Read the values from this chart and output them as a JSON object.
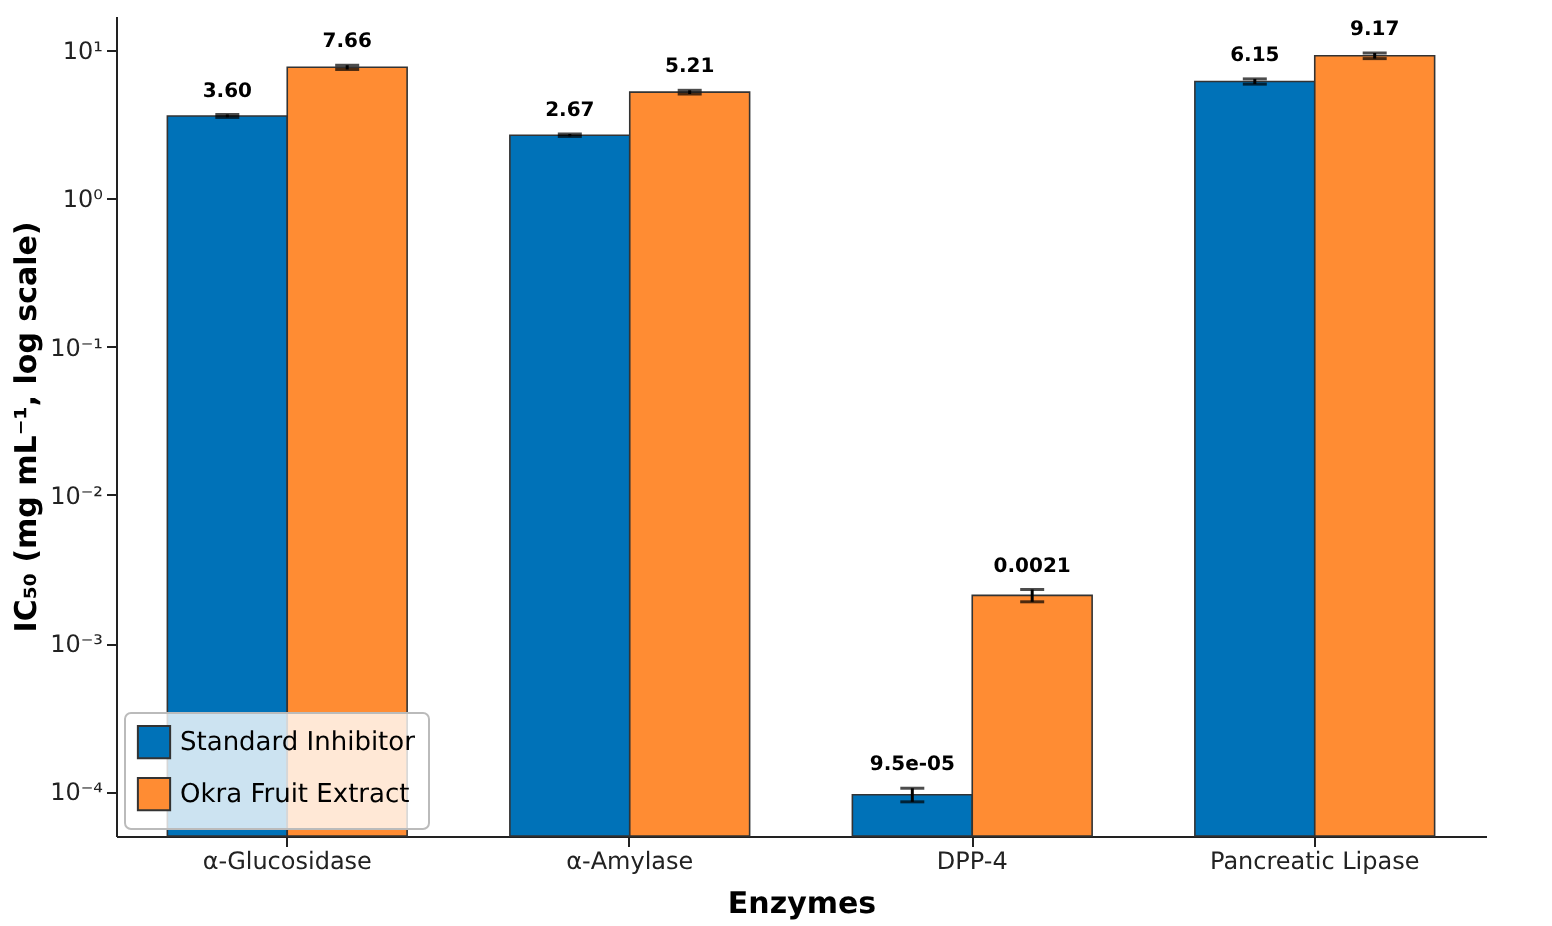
{
  "chart_data": {
    "type": "bar",
    "xlabel": "Enzymes",
    "ylabel": "IC₅₀ (mg mL⁻¹, log scale)",
    "categories": [
      "α-Glucosidase",
      "α-Amylase",
      "DPP-4",
      "Pancreatic Lipase"
    ],
    "series": [
      {
        "name": "Standard Inhibitor",
        "color": "#0072b8",
        "values": [
          3.6,
          2.67,
          9.5e-05,
          6.15
        ],
        "errors": [
          0.08,
          0.05,
          1e-05,
          0.25
        ],
        "value_labels": [
          "3.60",
          "2.67",
          "9.5e-05",
          "6.15"
        ]
      },
      {
        "name": "Okra Fruit Extract",
        "color": "#ff8c33",
        "values": [
          7.66,
          5.21,
          0.0021,
          9.17
        ],
        "errors": [
          0.25,
          0.15,
          0.0002,
          0.4
        ],
        "value_labels": [
          "7.66",
          "5.21",
          "0.0021",
          "9.17"
        ]
      }
    ],
    "log": true,
    "ylim": [
      5e-05,
      17
    ],
    "yticks": [
      {
        "value": 0.0001,
        "label": "10⁻⁴"
      },
      {
        "value": 0.001,
        "label": "10⁻³"
      },
      {
        "value": 0.01,
        "label": "10⁻²"
      },
      {
        "value": 0.1,
        "label": "10⁻¹"
      },
      {
        "value": 1,
        "label": "10⁰"
      },
      {
        "value": 10,
        "label": "10¹"
      }
    ],
    "legend": "bottom left",
    "grid": false
  }
}
